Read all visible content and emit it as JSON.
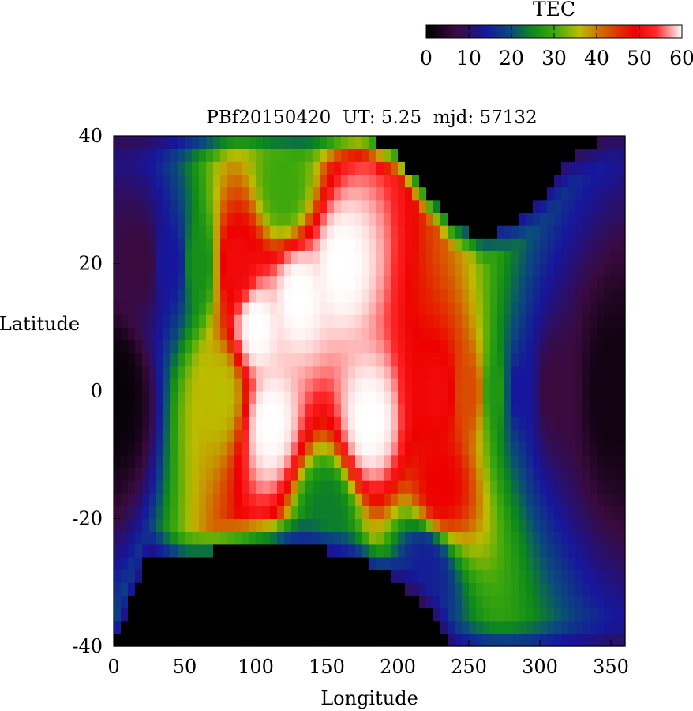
{
  "chart_data": {
    "type": "heatmap",
    "title": "PBf20150420  UT: 5.25  mjd: 57132",
    "xlabel": "Longitude",
    "ylabel": "Latitude",
    "xlim": [
      0,
      360
    ],
    "ylim": [
      -40,
      40
    ],
    "x_ticks": [
      "0",
      "50",
      "100",
      "150",
      "200",
      "250",
      "300",
      "350"
    ],
    "y_ticks": [
      "-40",
      "-20",
      "0",
      "20",
      "40"
    ],
    "grid": "off",
    "colorbar": {
      "label": "TEC",
      "range": [
        0,
        60
      ],
      "ticks": [
        "0",
        "10",
        "20",
        "30",
        "40",
        "50",
        "60"
      ],
      "placement": "top-right",
      "colors": [
        {
          "v": 0,
          "c": "#000000"
        },
        {
          "v": 7,
          "c": "#3a0a3e"
        },
        {
          "v": 14,
          "c": "#16169c"
        },
        {
          "v": 20,
          "c": "#0a4c7a"
        },
        {
          "v": 25,
          "c": "#0e8a1a"
        },
        {
          "v": 30,
          "c": "#3ca80c"
        },
        {
          "v": 36,
          "c": "#bcbc00"
        },
        {
          "v": 42,
          "c": "#d65a00"
        },
        {
          "v": 49,
          "c": "#ee0000"
        },
        {
          "v": 54,
          "c": "#ff2a2a"
        },
        {
          "v": 60,
          "c": "#ffffff"
        }
      ]
    },
    "grid_resolution": {
      "lon_step": 5,
      "lat_step": 2
    },
    "field": {
      "columns_with_data": [
        [
          0,
          5
        ],
        [
          5,
          360
        ]
      ],
      "data_lat_bounds": [
        {
          "lon": 0,
          "min": -40,
          "max": 40
        },
        {
          "lon": 25,
          "min": -25,
          "max": 40
        },
        {
          "lon": 50,
          "min": -26,
          "max": 40
        },
        {
          "lon": 70,
          "min": -25,
          "max": 40
        },
        {
          "lon": 100,
          "min": -23,
          "max": 41
        },
        {
          "lon": 120,
          "min": -23,
          "max": 41
        },
        {
          "lon": 150,
          "min": -25,
          "max": 40
        },
        {
          "lon": 175,
          "min": -26,
          "max": 40
        },
        {
          "lon": 200,
          "min": -30,
          "max": 37
        },
        {
          "lon": 220,
          "min": -34,
          "max": 31
        },
        {
          "lon": 240,
          "min": -40,
          "max": 26
        },
        {
          "lon": 260,
          "min": -40,
          "max": 24
        },
        {
          "lon": 280,
          "min": -40,
          "max": 26
        },
        {
          "lon": 300,
          "min": -40,
          "max": 30
        },
        {
          "lon": 320,
          "min": -40,
          "max": 36
        },
        {
          "lon": 350,
          "min": -40,
          "max": 40
        },
        {
          "lon": 360,
          "min": -40,
          "max": 40
        }
      ],
      "sample_values": [
        {
          "lon": 0,
          "lat": 0,
          "tec": 1
        },
        {
          "lon": 20,
          "lat": 20,
          "tec": 7
        },
        {
          "lon": 40,
          "lat": 20,
          "tec": 14
        },
        {
          "lon": 60,
          "lat": 20,
          "tec": 26
        },
        {
          "lon": 75,
          "lat": 0,
          "tec": 36
        },
        {
          "lon": 85,
          "lat": 20,
          "tec": 50
        },
        {
          "lon": 100,
          "lat": 10,
          "tec": 60
        },
        {
          "lon": 130,
          "lat": 15,
          "tec": 60
        },
        {
          "lon": 160,
          "lat": 20,
          "tec": 60
        },
        {
          "lon": 110,
          "lat": -5,
          "tec": 60
        },
        {
          "lon": 180,
          "lat": -5,
          "tec": 60
        },
        {
          "lon": 230,
          "lat": 0,
          "tec": 50
        },
        {
          "lon": 230,
          "lat": -15,
          "tec": 49
        },
        {
          "lon": 250,
          "lat": 0,
          "tec": 43
        },
        {
          "lon": 270,
          "lat": 0,
          "tec": 27
        },
        {
          "lon": 285,
          "lat": 0,
          "tec": 14
        },
        {
          "lon": 310,
          "lat": 0,
          "tec": 7
        },
        {
          "lon": 350,
          "lat": 0,
          "tec": 2
        },
        {
          "lon": 120,
          "lat": 32,
          "tec": 30
        },
        {
          "lon": 150,
          "lat": -20,
          "tec": 24
        },
        {
          "lon": 220,
          "lat": -28,
          "tec": 15
        }
      ]
    }
  }
}
